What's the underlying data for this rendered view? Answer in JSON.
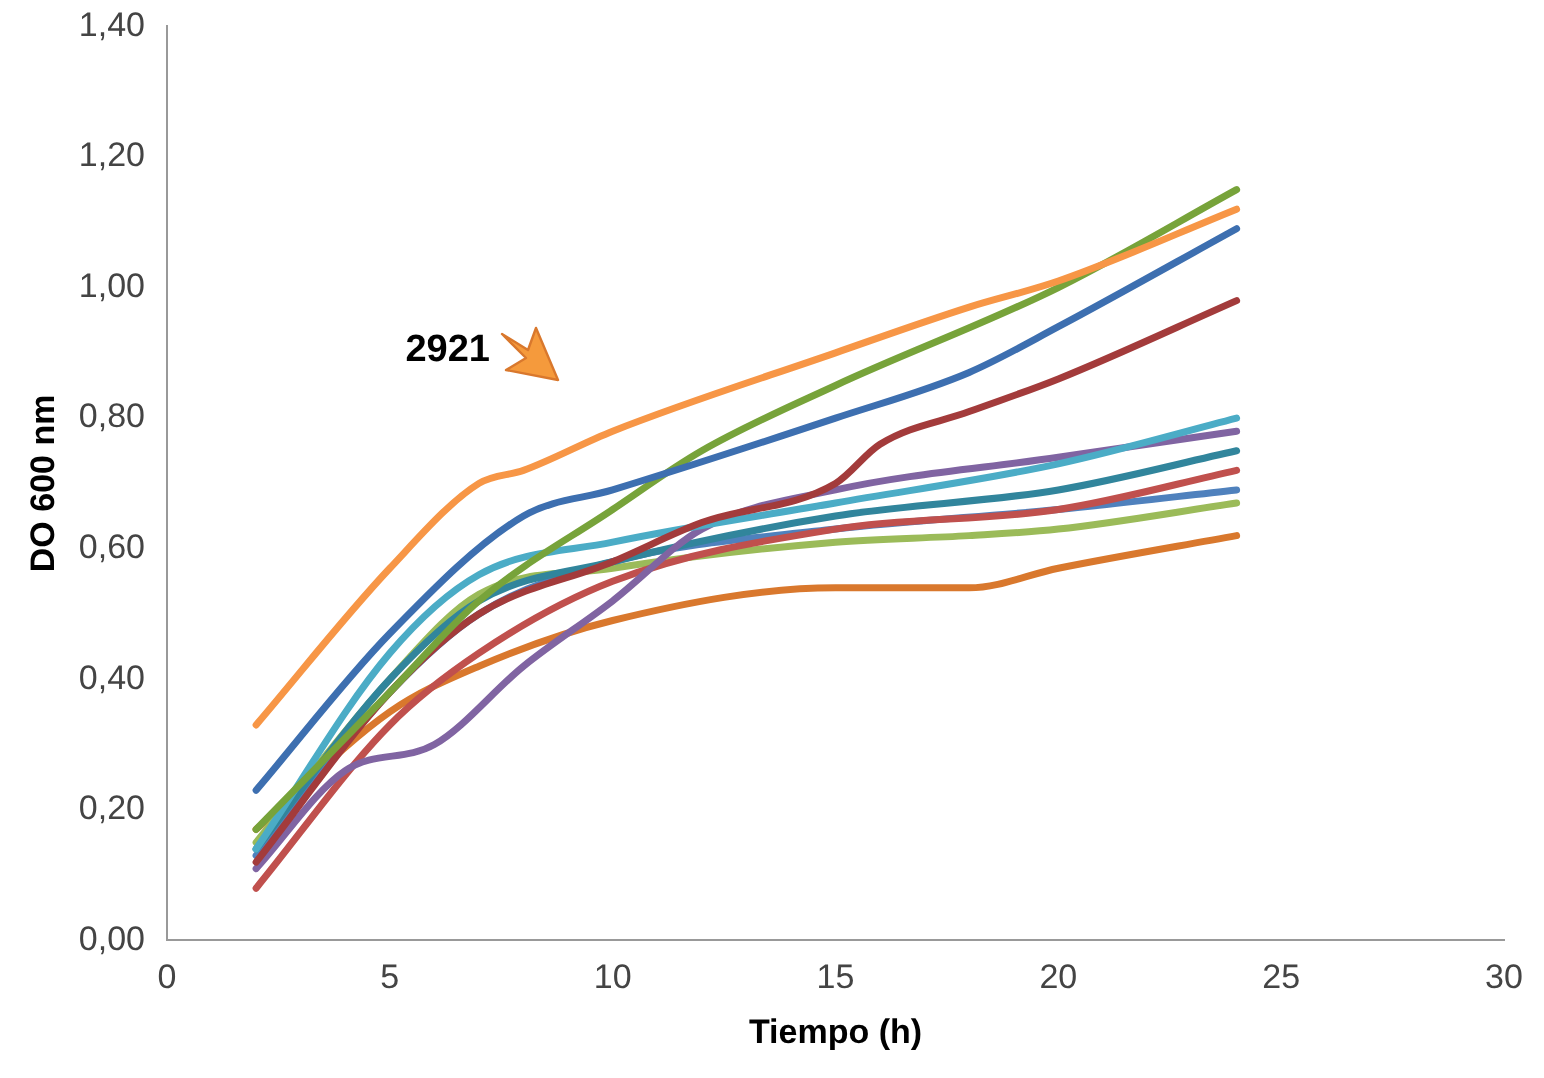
{
  "chart_data": {
    "type": "line",
    "xlabel": "Tiempo (h)",
    "ylabel": "DO 600 nm",
    "xlim": [
      0,
      30
    ],
    "xticks": [
      0,
      5,
      10,
      15,
      20,
      25,
      30
    ],
    "ylim": [
      0,
      1.4
    ],
    "yticks": [
      {
        "value": 0,
        "label": "0,00"
      },
      {
        "value": 0.2,
        "label": "0,20"
      },
      {
        "value": 0.4,
        "label": "0,40"
      },
      {
        "value": 0.6,
        "label": "0,60"
      },
      {
        "value": 0.8,
        "label": "0,80"
      },
      {
        "value": 1.0,
        "label": "1,00"
      },
      {
        "value": 1.2,
        "label": "1,20"
      },
      {
        "value": 1.4,
        "label": "1,40"
      }
    ],
    "grid": false,
    "legend": false,
    "marker": "none",
    "line_style": "solid",
    "annotations": [
      "2921"
    ],
    "series": [
      {
        "color": "#f79646",
        "x": [
          2,
          5,
          7,
          8,
          10,
          15,
          18,
          20,
          24
        ],
        "values": [
          0.33,
          0.57,
          0.7,
          0.72,
          0.78,
          0.9,
          0.97,
          1.01,
          1.12
        ]
      },
      {
        "color": "#3d6fb0",
        "x": [
          2,
          5,
          8,
          10,
          15,
          18,
          20,
          24
        ],
        "values": [
          0.23,
          0.47,
          0.65,
          0.69,
          0.8,
          0.87,
          0.94,
          1.09
        ]
      },
      {
        "color": "#77a33a",
        "x": [
          2,
          5,
          7,
          10,
          12,
          15,
          20,
          24
        ],
        "values": [
          0.17,
          0.38,
          0.52,
          0.66,
          0.75,
          0.85,
          1.0,
          1.15
        ]
      },
      {
        "color": "#a33b3b",
        "x": [
          2,
          5,
          7,
          10,
          12,
          15,
          16,
          18,
          20,
          24
        ],
        "values": [
          0.12,
          0.38,
          0.5,
          0.58,
          0.64,
          0.7,
          0.76,
          0.81,
          0.86,
          0.98
        ]
      },
      {
        "color": "#4bacc6",
        "x": [
          2,
          5,
          7,
          10,
          15,
          20,
          24
        ],
        "values": [
          0.14,
          0.44,
          0.56,
          0.61,
          0.67,
          0.73,
          0.8
        ]
      },
      {
        "color": "#8064a2",
        "x": [
          2,
          4,
          6,
          8,
          10,
          12,
          15,
          20,
          24
        ],
        "values": [
          0.11,
          0.26,
          0.3,
          0.42,
          0.52,
          0.63,
          0.69,
          0.74,
          0.78
        ]
      },
      {
        "color": "#31859c",
        "x": [
          2,
          5,
          7,
          10,
          15,
          20,
          24
        ],
        "values": [
          0.14,
          0.4,
          0.52,
          0.58,
          0.65,
          0.69,
          0.75
        ]
      },
      {
        "color": "#c0504d",
        "x": [
          2,
          5,
          7,
          10,
          15,
          20,
          24
        ],
        "values": [
          0.08,
          0.33,
          0.44,
          0.55,
          0.63,
          0.66,
          0.72
        ]
      },
      {
        "color": "#4f81bd",
        "x": [
          2,
          5,
          7,
          10,
          15,
          20,
          24
        ],
        "values": [
          0.13,
          0.38,
          0.5,
          0.58,
          0.63,
          0.66,
          0.69
        ]
      },
      {
        "color": "#9bbb59",
        "x": [
          2,
          5,
          7,
          10,
          15,
          18,
          20,
          24
        ],
        "values": [
          0.15,
          0.4,
          0.53,
          0.57,
          0.61,
          0.62,
          0.63,
          0.67
        ]
      },
      {
        "color": "#d9782d",
        "x": [
          2,
          5,
          7,
          10,
          15,
          18,
          20,
          24
        ],
        "values": [
          0.17,
          0.35,
          0.42,
          0.49,
          0.54,
          0.54,
          0.57,
          0.62
        ]
      }
    ]
  }
}
